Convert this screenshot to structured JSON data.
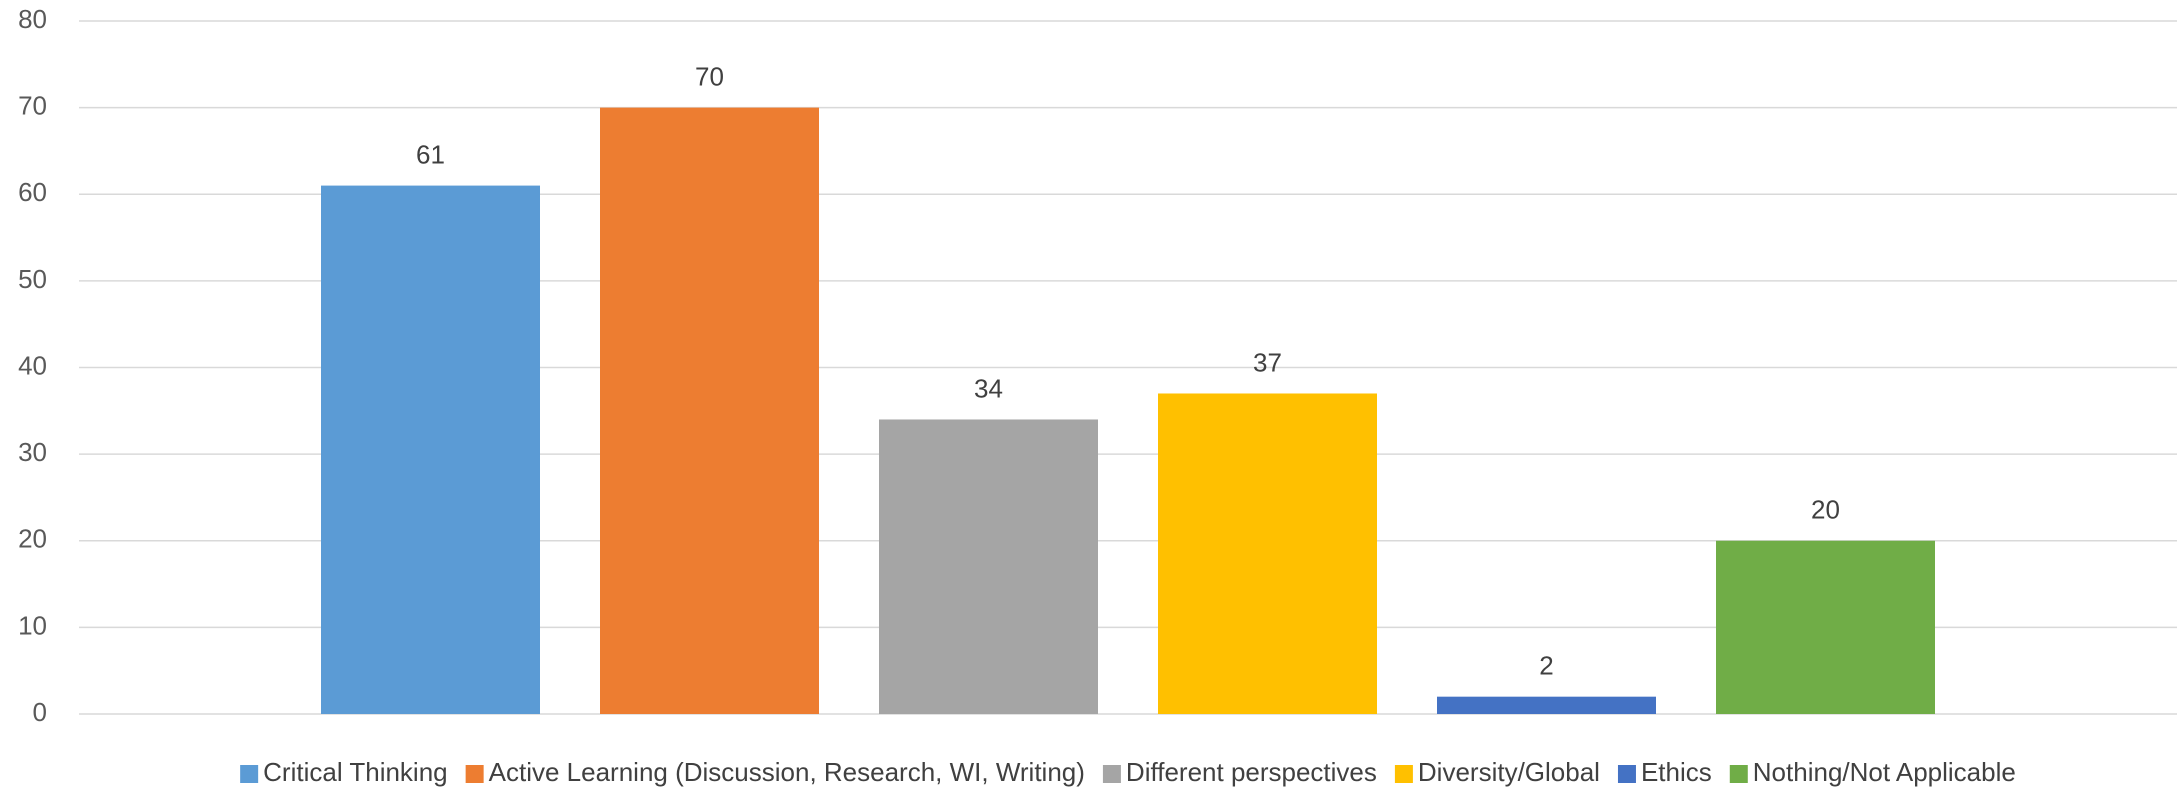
{
  "chart_data": {
    "type": "bar",
    "categories": [
      null
    ],
    "series": [
      {
        "name": "Critical Thinking",
        "color": "#5b9bd5",
        "values": [
          61
        ]
      },
      {
        "name": "Active Learning (Discussion, Research, WI, Writing)",
        "color": "#ed7d31",
        "values": [
          70
        ]
      },
      {
        "name": "Different perspectives",
        "color": "#a5a5a5",
        "values": [
          34
        ]
      },
      {
        "name": "Diversity/Global",
        "color": "#ffc000",
        "values": [
          37
        ]
      },
      {
        "name": "Ethics",
        "color": "#4472c4",
        "values": [
          2
        ]
      },
      {
        "name": "Nothing/Not Applicable",
        "color": "#70ad47",
        "values": [
          20
        ]
      }
    ],
    "ylim": [
      0,
      80
    ],
    "yticks": [
      0,
      10,
      20,
      30,
      40,
      50,
      60,
      70,
      80
    ],
    "grid": true,
    "legend": "bottom"
  }
}
